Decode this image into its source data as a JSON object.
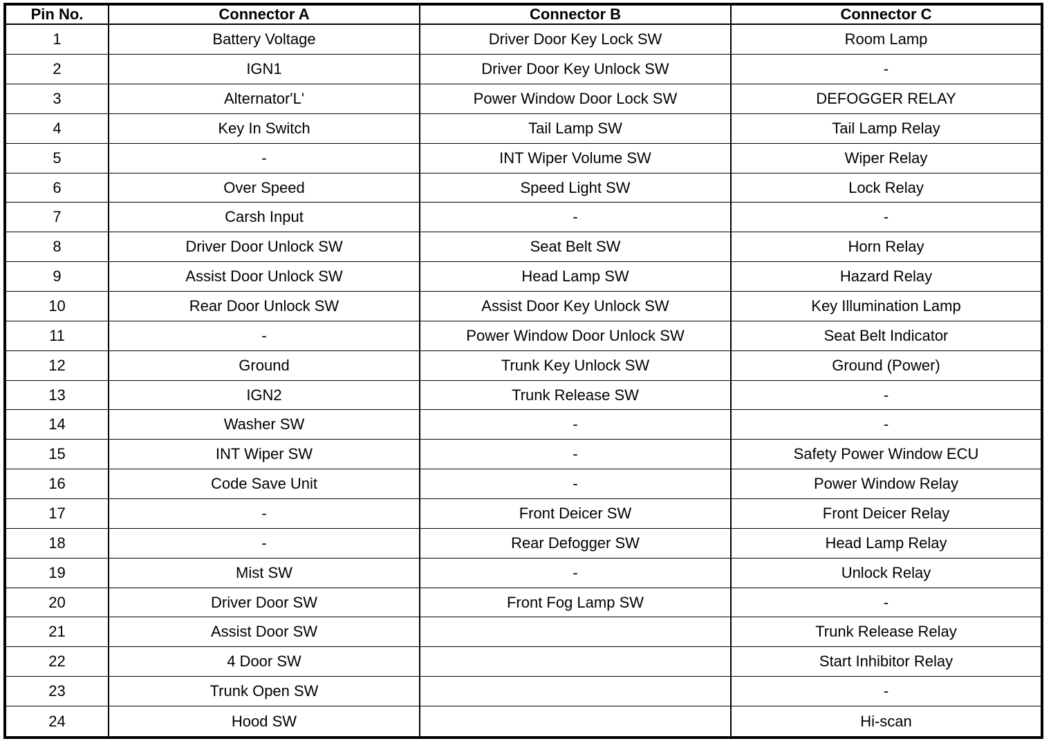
{
  "headers": [
    "Pin No.",
    "Connector A",
    "Connector B",
    "Connector C"
  ],
  "rows": [
    [
      "1",
      "Battery Voltage",
      "Driver Door Key Lock SW",
      "Room Lamp"
    ],
    [
      "2",
      "IGN1",
      "Driver Door Key Unlock SW",
      "-"
    ],
    [
      "3",
      "Alternator'L'",
      "Power Window Door Lock SW",
      "DEFOGGER RELAY"
    ],
    [
      "4",
      "Key In Switch",
      "Tail Lamp SW",
      "Tail Lamp Relay"
    ],
    [
      "5",
      "-",
      "INT Wiper Volume SW",
      "Wiper Relay"
    ],
    [
      "6",
      "Over Speed",
      "Speed Light SW",
      "Lock Relay"
    ],
    [
      "7",
      "Carsh Input",
      "-",
      "-"
    ],
    [
      "8",
      "Driver Door Unlock SW",
      "Seat Belt SW",
      "Horn Relay"
    ],
    [
      "9",
      "Assist Door Unlock SW",
      "Head Lamp SW",
      "Hazard Relay"
    ],
    [
      "10",
      "Rear Door Unlock SW",
      "Assist Door Key Unlock SW",
      "Key Illumination Lamp"
    ],
    [
      "11",
      "-",
      "Power Window Door Unlock SW",
      "Seat Belt Indicator"
    ],
    [
      "12",
      "Ground",
      "Trunk Key Unlock SW",
      "Ground (Power)"
    ],
    [
      "13",
      "IGN2",
      "Trunk Release SW",
      "-"
    ],
    [
      "14",
      "Washer SW",
      "-",
      "-"
    ],
    [
      "15",
      "INT Wiper SW",
      "-",
      "Safety Power Window ECU"
    ],
    [
      "16",
      "Code Save Unit",
      "-",
      "Power Window Relay"
    ],
    [
      "17",
      "-",
      "Front Deicer SW",
      "Front Deicer Relay"
    ],
    [
      "18",
      "-",
      "Rear Defogger SW",
      "Head Lamp Relay"
    ],
    [
      "19",
      "Mist SW",
      "-",
      "Unlock Relay"
    ],
    [
      "20",
      "Driver Door SW",
      "Front Fog Lamp SW",
      "-"
    ],
    [
      "21",
      "Assist Door SW",
      "",
      "Trunk Release Relay"
    ],
    [
      "22",
      "4 Door SW",
      "",
      "Start Inhibitor Relay"
    ],
    [
      "23",
      "Trunk Open SW",
      "",
      "-"
    ],
    [
      "24",
      "Hood SW",
      "",
      "Hi-scan"
    ]
  ]
}
